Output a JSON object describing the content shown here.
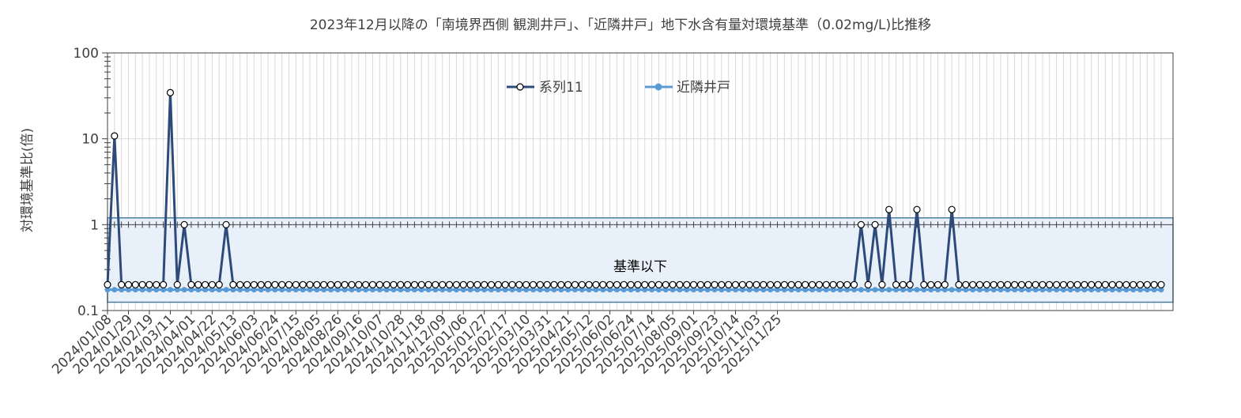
{
  "chart_data": {
    "type": "line",
    "title": "2023年12月以降の「南境界西側 観測井戸」、「近隣井戸」地下水含有量対環境基準（0.02mg/L)比推移",
    "ylabel": "対環境基準比(倍)",
    "xlabel": "",
    "yscale": "log",
    "ylim": [
      0.1,
      100
    ],
    "y_ticks": [
      "0.1",
      "1",
      "10",
      "100"
    ],
    "x_tick_labels": [
      "2024/01/08",
      "2024/01/29",
      "2024/02/19",
      "2024/03/11",
      "2024/04/01",
      "2024/04/22",
      "2024/05/13",
      "2024/06/03",
      "2024/06/24",
      "2024/07/15",
      "2024/08/05",
      "2024/08/26",
      "2024/09/16",
      "2024/10/07",
      "2024/10/28",
      "2024/11/18",
      "2024/12/09",
      "2025/01/06",
      "2025/01/27",
      "2025/02/17",
      "2025/03/10",
      "2025/03/31",
      "2025/04/21",
      "2025/05/12",
      "2025/06/02",
      "2025/06/24",
      "2025/07/14",
      "2025/08/05",
      "2025/09/01",
      "2025/09/23",
      "2025/10/14",
      "2025/11/03",
      "2025/11/25"
    ],
    "grid": true,
    "legend_position": "top-center",
    "annotation": "基準以下",
    "band": [
      0.125,
      1.2
    ],
    "band_color": "#e8f0fa",
    "band_border": "#4a7ea0",
    "series": [
      {
        "name": "系列11",
        "color": "#2e4a7a",
        "marker": "open-circle",
        "values": [
          0.2,
          10.8,
          0.2,
          0.2,
          0.2,
          0.2,
          0.2,
          0.2,
          0.2,
          34.5,
          0.2,
          1.0,
          0.2,
          0.2,
          0.2,
          0.2,
          0.2,
          1.0,
          0.2,
          0.2,
          0.2,
          0.2,
          0.2,
          0.2,
          0.2,
          0.2,
          0.2,
          0.2,
          0.2,
          0.2,
          0.2,
          0.2,
          0.2,
          0.2,
          0.2,
          0.2,
          0.2,
          0.2,
          0.2,
          0.2,
          0.2,
          0.2,
          0.2,
          0.2,
          0.2,
          0.2,
          0.2,
          0.2,
          0.2,
          0.2,
          0.2,
          0.2,
          0.2,
          0.2,
          0.2,
          0.2,
          0.2,
          0.2,
          0.2,
          0.2,
          0.2,
          0.2,
          0.2,
          0.2,
          0.2,
          0.2,
          0.2,
          0.2,
          0.2,
          0.2,
          0.2,
          0.2,
          0.2,
          0.2,
          0.2,
          0.2,
          0.2,
          0.2,
          0.2,
          0.2,
          0.2,
          0.2,
          0.2,
          0.2,
          0.2,
          0.2,
          0.2,
          0.2,
          0.2,
          0.2,
          0.2,
          0.2,
          0.2,
          0.2,
          0.2,
          0.2,
          0.2,
          0.2,
          0.2,
          0.2,
          0.2,
          0.2,
          0.2,
          0.2,
          0.2,
          0.2,
          0.2,
          0.2,
          1.0,
          0.2,
          1.0,
          0.2,
          1.5,
          0.2,
          0.2,
          0.2,
          1.5,
          0.2,
          0.2,
          0.2,
          0.2,
          1.5,
          0.2,
          0.2,
          0.2,
          0.2,
          0.2,
          0.2,
          0.2,
          0.2,
          0.2,
          0.2,
          0.2,
          0.2,
          0.2,
          0.2,
          0.2,
          0.2,
          0.2,
          0.2,
          0.2,
          0.2,
          0.2,
          0.2,
          0.2,
          0.2,
          0.2,
          0.2,
          0.2,
          0.2,
          0.2,
          0.2
        ]
      },
      {
        "name": "近隣井戸",
        "color": "#5b9bd5",
        "marker": "filled-circle",
        "constant_value": 0.175
      }
    ]
  }
}
